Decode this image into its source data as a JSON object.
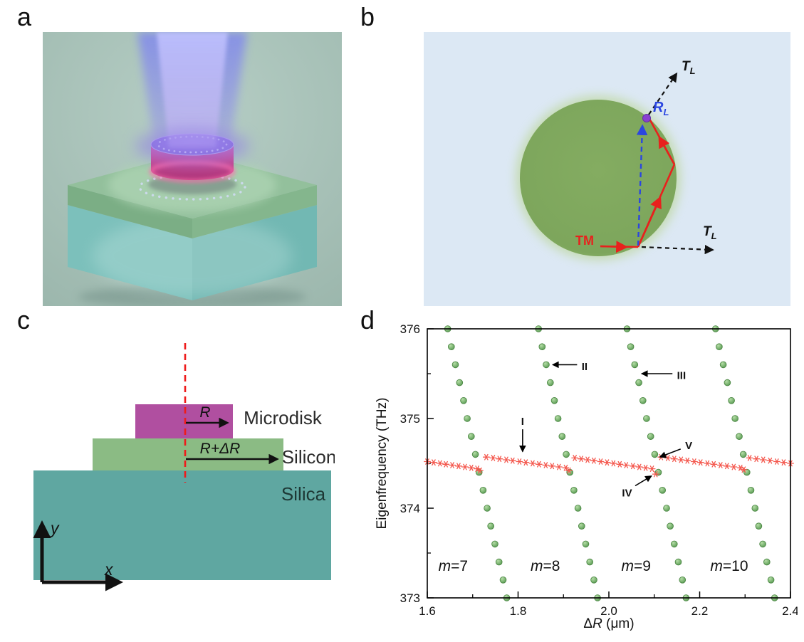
{
  "panels": {
    "a": "a",
    "b": "b",
    "c": "c",
    "d": "d"
  },
  "panel_b": {
    "tm_label": "TM",
    "r_l": {
      "main": "R",
      "sub": "L"
    },
    "t_l_top": {
      "main": "T",
      "sub": "L"
    },
    "t_l_right": {
      "main": "T",
      "sub": "L"
    },
    "colors": {
      "background": "#dce8f4",
      "disk": "#7da65c",
      "ray": "#e8211d",
      "reflection": "#2b46e0",
      "transmission": "#111111"
    }
  },
  "panel_c": {
    "microdisk_label": "Microdisk",
    "silicon_label": "Silicon",
    "silica_label": "Silica",
    "r_label": "R",
    "r_dr_label": "R+ΔR",
    "x_label": "x",
    "y_label": "y",
    "colors": {
      "silica": "#5fa7a1",
      "silicon": "#8bbb84",
      "microdisk": "#b04fa0",
      "dashed_axis": "#ee1c1c"
    }
  },
  "panel_a": {
    "colors": {
      "background": "#a9c1b7",
      "beam": "#8a87f0",
      "disk_side": "#d1549c",
      "disk_top": "#8d74da",
      "silicon_slab": "#93c09c",
      "silica_cube": "#7cc0bb"
    }
  },
  "chart_data": {
    "type": "scatter",
    "title": "",
    "ylabel": "Eigenfrequency (THz)",
    "xlabel_parts": [
      {
        "t": "Δ",
        "i": false
      },
      {
        "t": "R",
        "i": true
      },
      {
        "t": " (μm)",
        "i": false
      }
    ],
    "xlim": [
      1.6,
      2.4
    ],
    "ylim": [
      373,
      376
    ],
    "x_major_ticks": [
      1.6,
      1.8,
      2.0,
      2.2,
      2.4
    ],
    "x_minor_step": 0.1,
    "y_major_ticks": [
      373,
      374,
      375,
      376
    ],
    "y_minor_step": 0.5,
    "grid": false,
    "legend": "none",
    "series": [
      {
        "name": "m=7",
        "marker": "circle",
        "color": "#6cae62",
        "points": [
          [
            1.645,
            376.0
          ],
          [
            1.653,
            375.8
          ],
          [
            1.662,
            375.6
          ],
          [
            1.671,
            375.4
          ],
          [
            1.68,
            375.2
          ],
          [
            1.688,
            375.0
          ],
          [
            1.697,
            374.8
          ],
          [
            1.706,
            374.6
          ],
          [
            1.714,
            374.4
          ],
          [
            1.723,
            374.2
          ],
          [
            1.732,
            374.0
          ],
          [
            1.74,
            373.8
          ],
          [
            1.749,
            373.6
          ],
          [
            1.758,
            373.4
          ],
          [
            1.767,
            373.2
          ],
          [
            1.775,
            373.0
          ]
        ]
      },
      {
        "name": "m=8",
        "marker": "circle",
        "color": "#6cae62",
        "points": [
          [
            1.845,
            376.0
          ],
          [
            1.853,
            375.8
          ],
          [
            1.862,
            375.6
          ],
          [
            1.871,
            375.4
          ],
          [
            1.88,
            375.2
          ],
          [
            1.888,
            375.0
          ],
          [
            1.897,
            374.8
          ],
          [
            1.906,
            374.6
          ],
          [
            1.914,
            374.4
          ],
          [
            1.923,
            374.2
          ],
          [
            1.932,
            374.0
          ],
          [
            1.94,
            373.8
          ],
          [
            1.949,
            373.6
          ],
          [
            1.958,
            373.4
          ],
          [
            1.967,
            373.2
          ],
          [
            1.975,
            373.0
          ]
        ]
      },
      {
        "name": "m=9",
        "marker": "circle",
        "color": "#6cae62",
        "points": [
          [
            2.04,
            376.0
          ],
          [
            2.048,
            375.8
          ],
          [
            2.057,
            375.6
          ],
          [
            2.066,
            375.4
          ],
          [
            2.075,
            375.2
          ],
          [
            2.083,
            375.0
          ],
          [
            2.092,
            374.8
          ],
          [
            2.101,
            374.6
          ],
          [
            2.109,
            374.4
          ],
          [
            2.118,
            374.2
          ],
          [
            2.127,
            374.0
          ],
          [
            2.135,
            373.8
          ],
          [
            2.144,
            373.6
          ],
          [
            2.153,
            373.4
          ],
          [
            2.162,
            373.2
          ],
          [
            2.17,
            373.0
          ]
        ]
      },
      {
        "name": "m=10",
        "marker": "circle",
        "color": "#6cae62",
        "points": [
          [
            2.235,
            376.0
          ],
          [
            2.243,
            375.8
          ],
          [
            2.252,
            375.6
          ],
          [
            2.261,
            375.4
          ],
          [
            2.27,
            375.2
          ],
          [
            2.278,
            375.0
          ],
          [
            2.287,
            374.8
          ],
          [
            2.296,
            374.6
          ],
          [
            2.304,
            374.4
          ],
          [
            2.313,
            374.2
          ],
          [
            2.322,
            374.0
          ],
          [
            2.33,
            373.8
          ],
          [
            2.339,
            373.6
          ],
          [
            2.348,
            373.4
          ],
          [
            2.357,
            373.2
          ],
          [
            2.365,
            373.0
          ]
        ]
      },
      {
        "name": "flat-mode",
        "marker": "star",
        "color": "#f4584e",
        "points": [
          [
            1.6,
            374.52
          ],
          [
            1.614,
            374.51
          ],
          [
            1.628,
            374.5
          ],
          [
            1.641,
            374.49
          ],
          [
            1.655,
            374.48
          ],
          [
            1.669,
            374.47
          ],
          [
            1.683,
            374.46
          ],
          [
            1.697,
            374.45
          ],
          [
            1.71,
            374.44
          ],
          [
            1.716,
            374.42
          ],
          [
            1.73,
            374.57
          ],
          [
            1.745,
            374.56
          ],
          [
            1.759,
            374.55
          ],
          [
            1.774,
            374.54
          ],
          [
            1.788,
            374.53
          ],
          [
            1.803,
            374.52
          ],
          [
            1.817,
            374.51
          ],
          [
            1.832,
            374.5
          ],
          [
            1.846,
            374.49
          ],
          [
            1.861,
            374.48
          ],
          [
            1.875,
            374.47
          ],
          [
            1.89,
            374.46
          ],
          [
            1.905,
            374.45
          ],
          [
            1.912,
            374.42
          ],
          [
            1.925,
            374.56
          ],
          [
            1.939,
            374.55
          ],
          [
            1.953,
            374.54
          ],
          [
            1.967,
            374.53
          ],
          [
            1.982,
            374.52
          ],
          [
            1.996,
            374.51
          ],
          [
            2.01,
            374.5
          ],
          [
            2.024,
            374.49
          ],
          [
            2.038,
            374.48
          ],
          [
            2.053,
            374.47
          ],
          [
            2.067,
            374.46
          ],
          [
            2.081,
            374.45
          ],
          [
            2.095,
            374.44
          ],
          [
            2.103,
            374.38
          ],
          [
            2.115,
            374.57
          ],
          [
            2.13,
            374.56
          ],
          [
            2.144,
            374.55
          ],
          [
            2.159,
            374.54
          ],
          [
            2.173,
            374.53
          ],
          [
            2.188,
            374.52
          ],
          [
            2.202,
            374.51
          ],
          [
            2.217,
            374.5
          ],
          [
            2.231,
            374.49
          ],
          [
            2.246,
            374.48
          ],
          [
            2.26,
            374.47
          ],
          [
            2.275,
            374.46
          ],
          [
            2.29,
            374.45
          ],
          [
            2.297,
            374.43
          ],
          [
            2.31,
            374.56
          ],
          [
            2.325,
            374.55
          ],
          [
            2.34,
            374.54
          ],
          [
            2.355,
            374.53
          ],
          [
            2.37,
            374.52
          ],
          [
            2.385,
            374.51
          ],
          [
            2.4,
            374.5
          ]
        ]
      }
    ],
    "mode_labels": [
      {
        "text": "m=7",
        "x": 1.657,
        "y": 373.3
      },
      {
        "text": "m=8",
        "x": 1.86,
        "y": 373.3
      },
      {
        "text": "m=9",
        "x": 2.06,
        "y": 373.3
      },
      {
        "text": "m=10",
        "x": 2.265,
        "y": 373.3
      }
    ],
    "annotations": [
      {
        "label": "I",
        "label_x": 1.81,
        "label_y": 374.97,
        "anchor": "middle",
        "x1": 1.81,
        "y1": 374.88,
        "x2": 1.81,
        "y2": 374.63
      },
      {
        "label": "II",
        "label_x": 1.94,
        "label_y": 375.58,
        "anchor": "start",
        "x1": 1.93,
        "y1": 375.6,
        "x2": 1.876,
        "y2": 375.6
      },
      {
        "label": "III",
        "label_x": 2.15,
        "label_y": 375.48,
        "anchor": "start",
        "x1": 2.14,
        "y1": 375.5,
        "x2": 2.072,
        "y2": 375.5
      },
      {
        "label": "IV",
        "label_x": 2.04,
        "label_y": 374.17,
        "anchor": "middle",
        "x1": 2.058,
        "y1": 374.25,
        "x2": 2.094,
        "y2": 374.36
      },
      {
        "label": "V",
        "label_x": 2.168,
        "label_y": 374.7,
        "anchor": "start",
        "x1": 2.158,
        "y1": 374.66,
        "x2": 2.112,
        "y2": 374.57
      }
    ]
  }
}
